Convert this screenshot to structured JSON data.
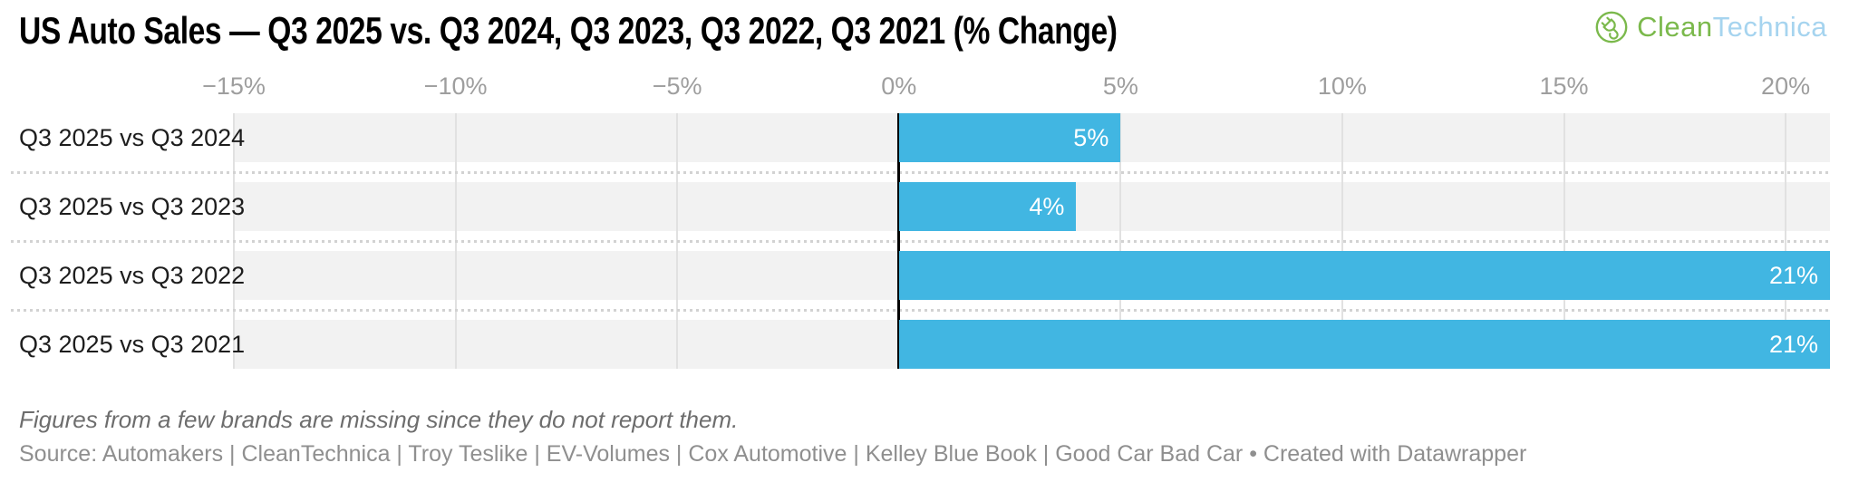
{
  "header": {
    "logo": {
      "part1": "Clean",
      "part2": "Technica"
    }
  },
  "chart_data": {
    "type": "bar",
    "orientation": "horizontal",
    "title": "US Auto Sales — Q3 2025 vs. Q3 2024, Q3 2023, Q3 2022, Q3 2021 (% Change)",
    "categories": [
      "Q3 2025 vs Q3 2024",
      "Q3 2025 vs Q3 2023",
      "Q3 2025 vs Q3 2022",
      "Q3 2025 vs Q3 2021"
    ],
    "values": [
      5,
      4,
      21,
      21
    ],
    "value_labels": [
      "5%",
      "4%",
      "21%",
      "21%"
    ],
    "xlim": [
      -15,
      21
    ],
    "ticks": [
      {
        "v": -15,
        "label": "−15%"
      },
      {
        "v": -10,
        "label": "−10%"
      },
      {
        "v": -5,
        "label": "−5%"
      },
      {
        "v": 0,
        "label": "0%"
      },
      {
        "v": 5,
        "label": "5%"
      },
      {
        "v": 10,
        "label": "10%"
      },
      {
        "v": 15,
        "label": "15%"
      },
      {
        "v": 20,
        "label": "20%"
      }
    ],
    "grid": true,
    "legend": "none",
    "bar_color": "#41b6e2",
    "zero_line_color": "#000000"
  },
  "footer": {
    "footnote": "Figures from a few brands are missing since they do not report them.",
    "source": "Source: Automakers | CleanTechnica | Troy Teslike | EV-Volumes | Cox Automotive | Kelley Blue Book | Good Car Bad Car • Created with Datawrapper"
  },
  "colors": {
    "accent_blue": "#41b6e2",
    "logo_green": "#7bb94c",
    "logo_blue": "#a6d4ef",
    "row_stripe": "#f2f2f2"
  }
}
